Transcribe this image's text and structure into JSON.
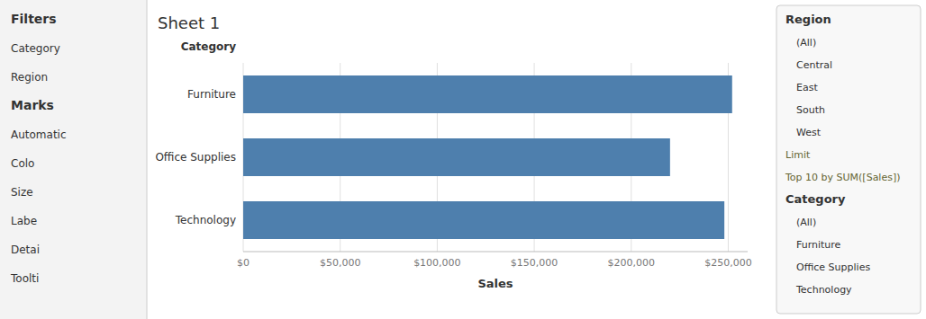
{
  "chart_data": {
    "type": "bar",
    "orientation": "horizontal",
    "title": "Sheet 1",
    "categories": [
      "Furniture",
      "Office Supplies",
      "Technology"
    ],
    "values": [
      252000,
      220000,
      248000
    ],
    "color": "#4e7fad",
    "xlim": [
      0,
      260000
    ],
    "xticks": [
      {
        "value": 0,
        "label": "$0"
      },
      {
        "value": 50000,
        "label": "$50,000"
      },
      {
        "value": 100000,
        "label": "$100,000"
      },
      {
        "value": 150000,
        "label": "$150,000"
      },
      {
        "value": 200000,
        "label": "$200,000"
      },
      {
        "value": 250000,
        "label": "$250,000"
      }
    ],
    "x_label": "Sales",
    "y_label": "Category",
    "grid": true,
    "annotations": [
      [
        "Filters",
        "Category",
        "Region",
        "Marks",
        "Automatic",
        "Colo",
        "Size",
        "Labe",
        "Detai",
        "Toolti"
      ],
      [
        "Region",
        "(All)",
        "Central",
        "East",
        "South",
        "West",
        "Limit",
        "Top 10 by SUM([Sales])",
        "Category",
        "(All)",
        "Furniture",
        "Office Supplies",
        "Technology"
      ]
    ]
  }
}
